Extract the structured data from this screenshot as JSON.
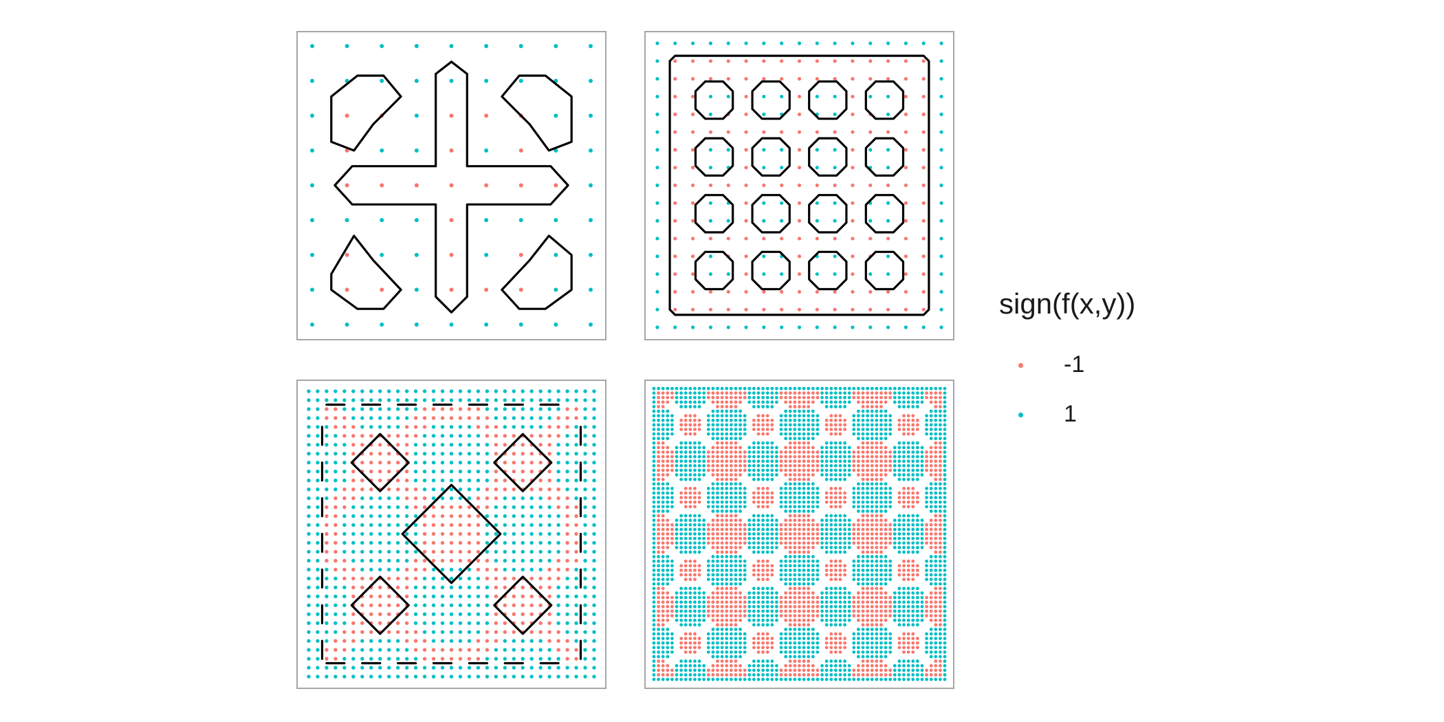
{
  "chart_data": [
    {
      "type": "scatter",
      "panel": "top-left",
      "description_basis": "sign of f(x,y) on a grid",
      "grid_size": 9,
      "xlim": [
        0,
        8
      ],
      "ylim": [
        0,
        8
      ],
      "negative_points": [
        [
          1,
          6
        ],
        [
          1,
          5
        ],
        [
          2,
          6
        ],
        [
          6,
          6
        ],
        [
          6,
          5
        ],
        [
          5,
          6
        ],
        [
          4,
          6
        ],
        [
          4,
          5
        ],
        [
          1,
          4
        ],
        [
          2,
          4
        ],
        [
          3,
          4
        ],
        [
          4,
          4
        ],
        [
          5,
          4
        ],
        [
          6,
          4
        ],
        [
          7,
          4
        ],
        [
          4,
          3
        ],
        [
          4,
          2
        ],
        [
          4,
          1
        ],
        [
          1,
          2
        ],
        [
          1,
          1
        ],
        [
          2,
          1
        ],
        [
          6,
          2
        ],
        [
          6,
          1
        ],
        [
          5,
          1
        ]
      ],
      "contours": [
        [
          [
            0.55,
            6.55
          ],
          [
            1.3,
            7.15
          ],
          [
            2.05,
            7.15
          ],
          [
            2.55,
            6.55
          ],
          [
            1.75,
            5.75
          ],
          [
            1.2,
            5.0
          ],
          [
            0.55,
            5.25
          ],
          [
            0.55,
            6.55
          ]
        ],
        [
          [
            5.45,
            6.55
          ],
          [
            5.95,
            7.15
          ],
          [
            6.7,
            7.15
          ],
          [
            7.45,
            6.55
          ],
          [
            7.45,
            5.25
          ],
          [
            6.8,
            5.0
          ],
          [
            6.25,
            5.75
          ],
          [
            5.45,
            6.55
          ]
        ],
        [
          [
            0.55,
            1.45
          ],
          [
            1.2,
            2.55
          ],
          [
            1.75,
            1.85
          ],
          [
            2.55,
            1.0
          ],
          [
            2.05,
            0.45
          ],
          [
            1.3,
            0.45
          ],
          [
            0.55,
            1.0
          ],
          [
            0.55,
            1.45
          ]
        ],
        [
          [
            5.45,
            1.0
          ],
          [
            5.95,
            0.45
          ],
          [
            6.7,
            0.45
          ],
          [
            7.45,
            1.0
          ],
          [
            7.45,
            2.0
          ],
          [
            6.8,
            2.55
          ],
          [
            6.25,
            1.85
          ],
          [
            5.45,
            1.0
          ]
        ],
        [
          [
            3.55,
            7.2
          ],
          [
            4.0,
            7.55
          ],
          [
            4.45,
            7.2
          ],
          [
            4.45,
            4.55
          ],
          [
            6.85,
            4.55
          ],
          [
            7.35,
            4.0
          ],
          [
            6.85,
            3.45
          ],
          [
            4.45,
            3.45
          ],
          [
            4.45,
            0.8
          ],
          [
            4.0,
            0.35
          ],
          [
            3.55,
            0.8
          ],
          [
            3.55,
            3.45
          ],
          [
            1.15,
            3.45
          ],
          [
            0.65,
            4.0
          ],
          [
            1.15,
            4.55
          ],
          [
            3.55,
            4.55
          ],
          [
            3.55,
            7.2
          ]
        ]
      ]
    },
    {
      "type": "scatter",
      "panel": "top-right",
      "description_basis": "sign of f(x,y) on a grid",
      "grid_size": 17,
      "xlim": [
        0,
        16
      ],
      "ylim": [
        0,
        16
      ]
    },
    {
      "type": "scatter",
      "panel": "bottom-left",
      "description_basis": "sign of f(x,y) on a grid",
      "grid_size": 33,
      "xlim": [
        0,
        32
      ],
      "ylim": [
        0,
        32
      ]
    },
    {
      "type": "scatter",
      "panel": "bottom-right",
      "description_basis": "sign of f(x,y) on a grid",
      "grid_size": 65,
      "xlim": [
        0,
        64
      ],
      "ylim": [
        0,
        64
      ]
    }
  ],
  "legend": {
    "title": "sign(f(x,y))",
    "items": [
      {
        "label": "-1",
        "color": "#f8766d"
      },
      {
        "label": "1",
        "color": "#00bfc4"
      }
    ]
  },
  "colors": {
    "negative": "#f8766d",
    "positive": "#00bfc4",
    "contour": "#000000",
    "panel_border": "#a6a6a6"
  }
}
